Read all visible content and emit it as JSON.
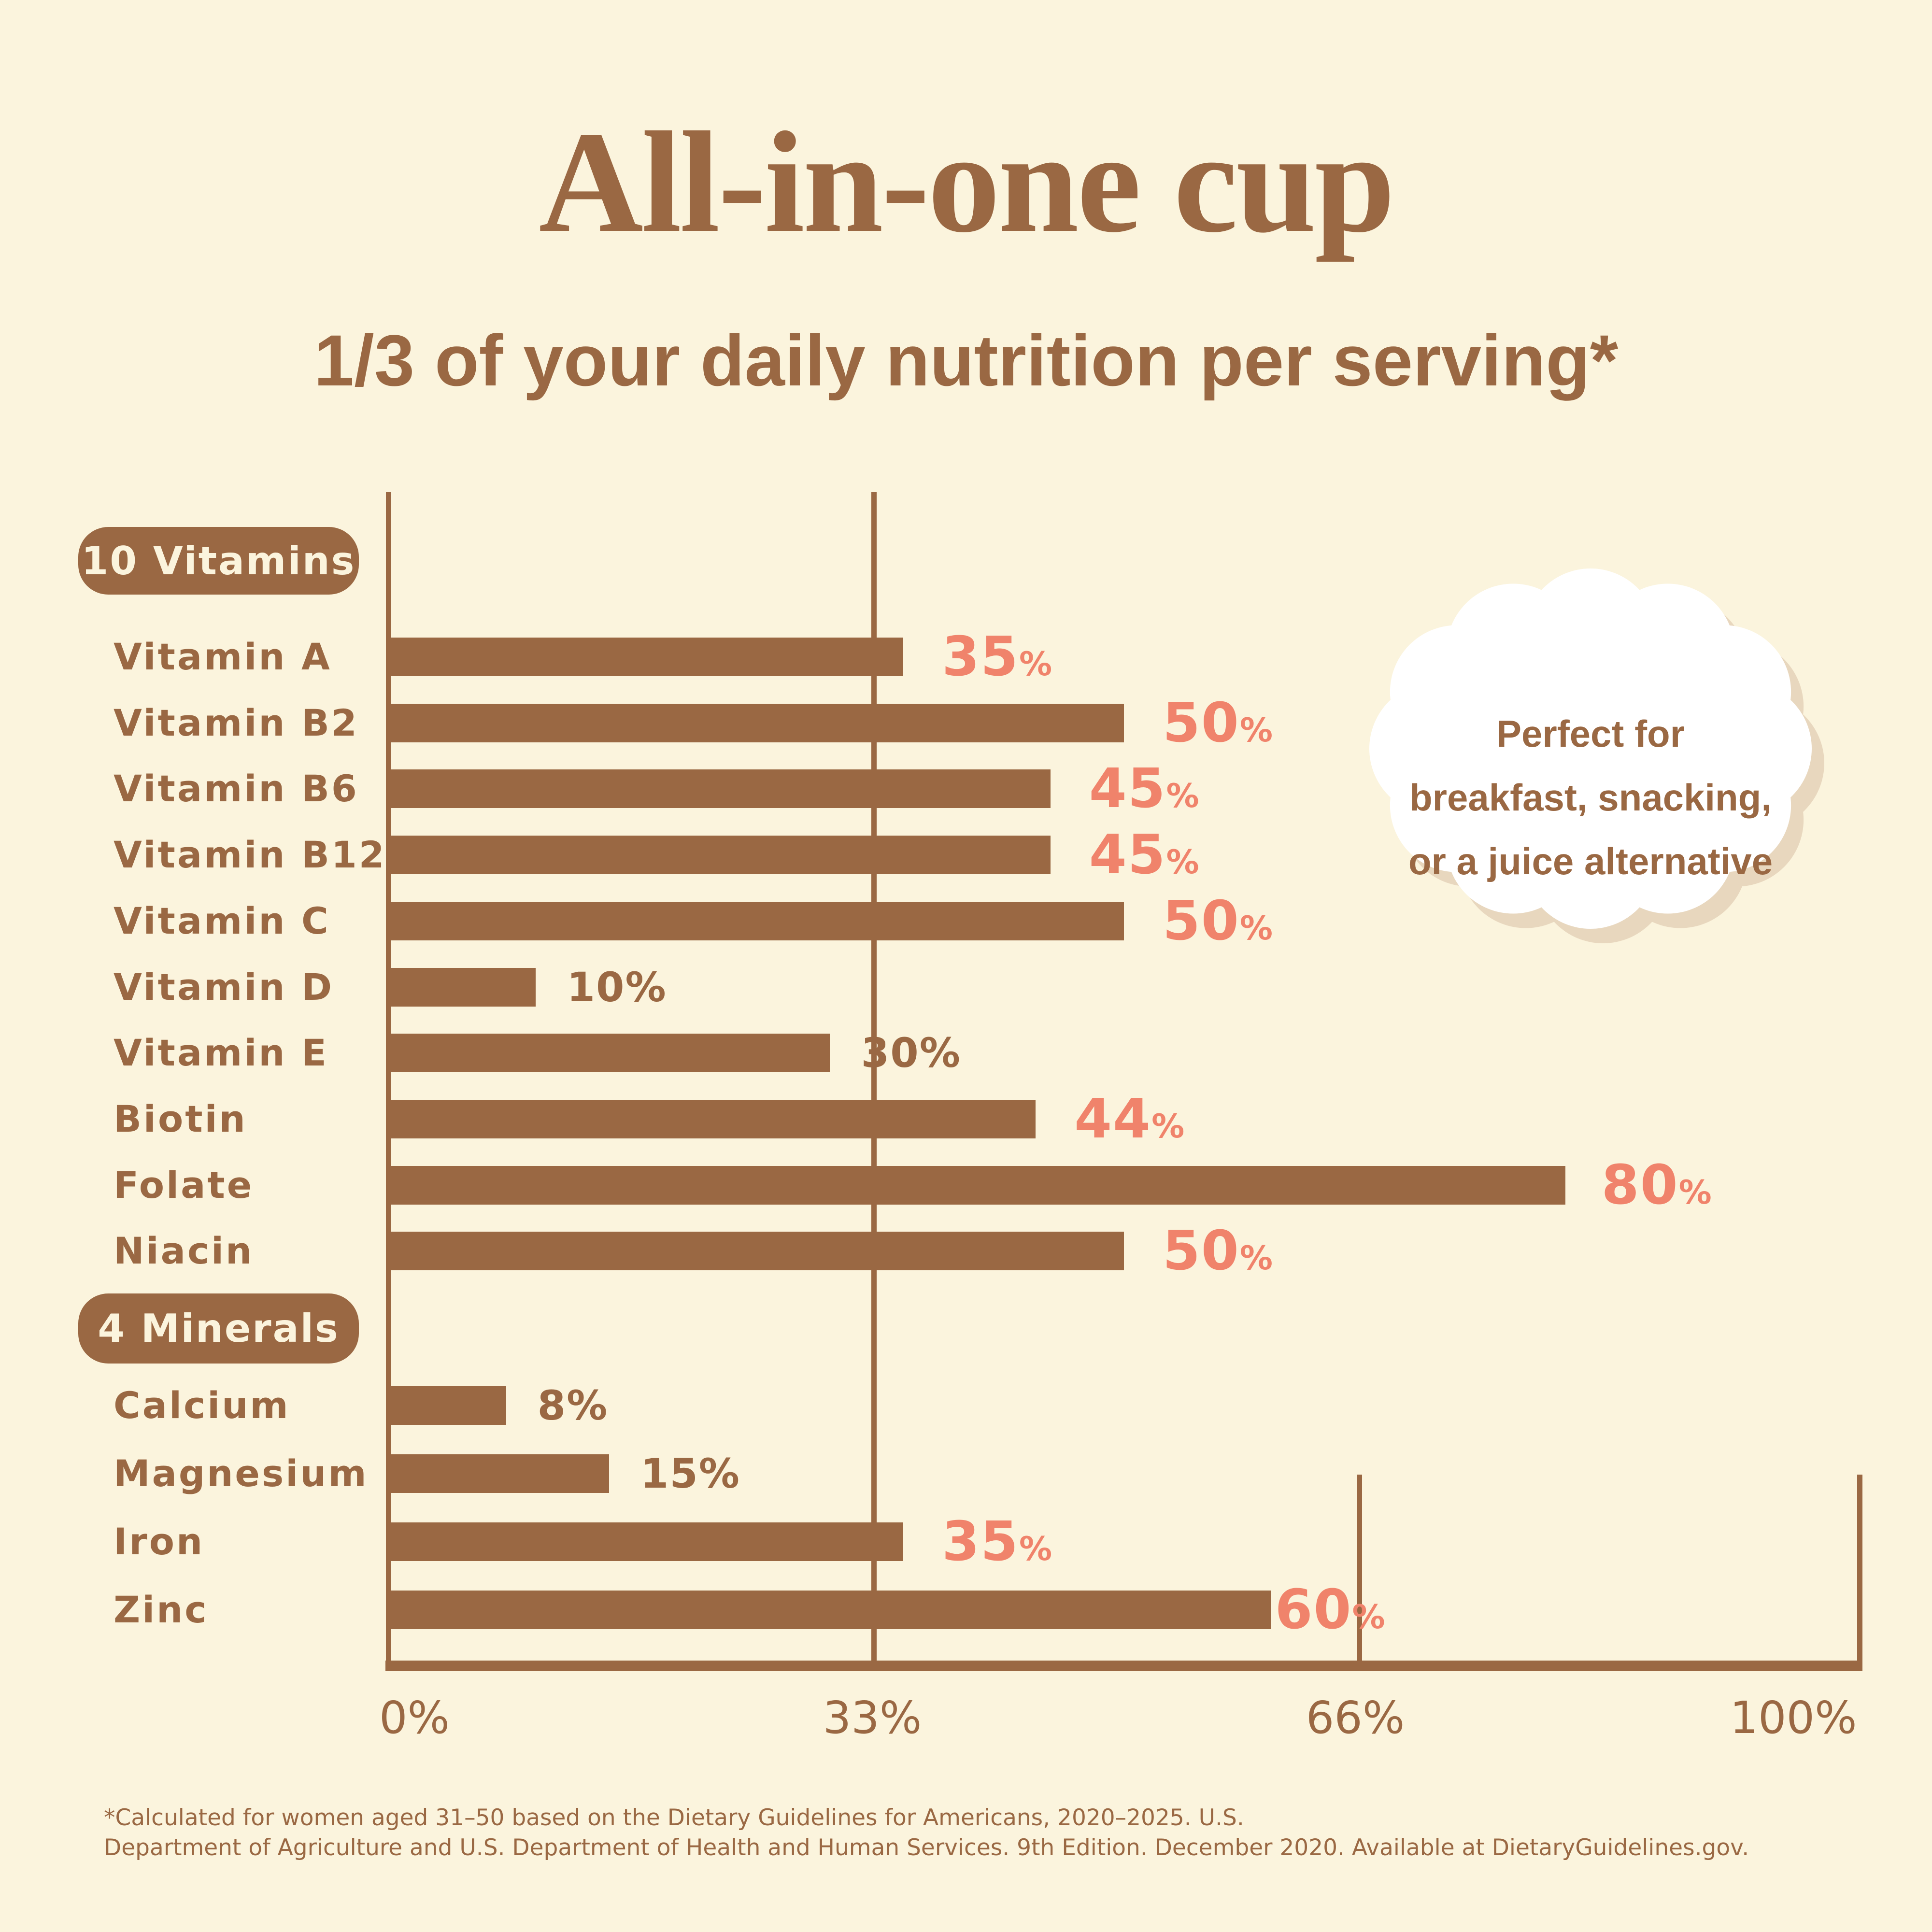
{
  "title": "All-in-one cup",
  "subtitle": "1/3 of your daily nutrition per serving*",
  "callout": {
    "lines": [
      "Perfect for",
      "breakfast, snacking,",
      "or a juice alternative"
    ]
  },
  "footnote": {
    "lines": [
      "*Calculated for women aged 31–50 based on the Dietary Guidelines for Americans, 2020–2025. U.S.",
      "Department of Agriculture and U.S. Department of Health and Human Services. 9th Edition. December 2020. Available at DietaryGuidelines.gov."
    ]
  },
  "colors": {
    "background": "#FBF4DD",
    "brown": "#9A6843",
    "accent": "#F0836B",
    "pill_text": "#FBF4DD",
    "cloud_fill": "#FFFFFF",
    "cloud_shadow": "#E8D7BE"
  },
  "chart_data": {
    "type": "bar",
    "orientation": "horizontal",
    "title": "All-in-one cup",
    "subtitle": "1/3 of your daily nutrition per serving*",
    "xlabel": "",
    "ylabel": "",
    "xlim": [
      0,
      100
    ],
    "x_ticks": [
      "0%",
      "33%",
      "66%",
      "100%"
    ],
    "x_tick_values": [
      0,
      33,
      66,
      100
    ],
    "value_suffix": "%",
    "grid": "vertical lines at 0 and 33 full height; 66 and 100 bottom segment only",
    "legend_position": "none",
    "groups": [
      {
        "label": "10 Vitamins",
        "items": [
          {
            "name": "Vitamin A",
            "value": 35,
            "emphasis": true
          },
          {
            "name": "Vitamin B2",
            "value": 50,
            "emphasis": true
          },
          {
            "name": "Vitamin B6",
            "value": 45,
            "emphasis": true
          },
          {
            "name": "Vitamin B12",
            "value": 45,
            "emphasis": true
          },
          {
            "name": "Vitamin C",
            "value": 50,
            "emphasis": true
          },
          {
            "name": "Vitamin D",
            "value": 10,
            "emphasis": false
          },
          {
            "name": "Vitamin E",
            "value": 30,
            "emphasis": false
          },
          {
            "name": "Biotin",
            "value": 44,
            "emphasis": true
          },
          {
            "name": "Folate",
            "value": 80,
            "emphasis": true
          },
          {
            "name": "Niacin",
            "value": 50,
            "emphasis": true
          }
        ]
      },
      {
        "label": "4 Minerals",
        "items": [
          {
            "name": "Calcium",
            "value": 8,
            "emphasis": false
          },
          {
            "name": "Magnesium",
            "value": 15,
            "emphasis": false
          },
          {
            "name": "Iron",
            "value": 35,
            "emphasis": true
          },
          {
            "name": "Zinc",
            "value": 60,
            "emphasis": true
          }
        ]
      }
    ]
  }
}
